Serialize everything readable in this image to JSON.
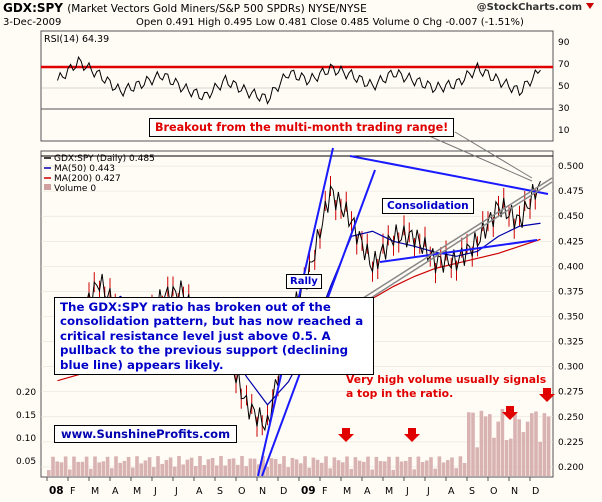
{
  "header": {
    "symbol": "GDX:SPY",
    "subtitle": "(Market Vectors Gold Miners/S&P 500 SPDRs) NYSE/NYSE",
    "brand": "@StockCharts.com",
    "date": "3-Dec-2009",
    "ohlc": "Open 0.491  High 0.495  Low 0.481  Close 0.485  Volume 0  Chg -0.007 (-1.51%)"
  },
  "colors": {
    "background": "#fffcf6",
    "price": "#000000",
    "down_bar": "#cc0000",
    "ma50": "#0000aa",
    "ma200": "#cc0000",
    "trendline": "#1a1aff",
    "volume": "#d0a0a0",
    "annotation_red": "#e00000",
    "annotation_blue": "#0000c8"
  },
  "annotations": {
    "breakout": "Breakout from the multi-month trading range!",
    "consolidation": "Consolidation",
    "rally": "Rally",
    "main_note": "The GDX:SPY ratio has broken out of the consolidation pattern, but has now reached a critical resistance level just above 0.5. A pullback to the previous support (declining blue line) appears likely.",
    "volume_note_1": "Very high volume usually signals",
    "volume_note_2": "a top in the ratio.",
    "website": "www.SunshineProfits.com"
  },
  "chart_data": [
    {
      "type": "line",
      "title": "RSI(14) 64.39",
      "ylim": [
        0,
        100
      ],
      "y_ticks": [
        "90",
        "70",
        "50",
        "30",
        "10"
      ],
      "reference_lines": [
        70,
        30
      ],
      "x": [
        "2008-01",
        "2008-02",
        "2008-03",
        "2008-04",
        "2008-05",
        "2008-06",
        "2008-07",
        "2008-08",
        "2008-09",
        "2008-10",
        "2008-11",
        "2008-12",
        "2009-01",
        "2009-02",
        "2009-03",
        "2009-04",
        "2009-05",
        "2009-06",
        "2009-07",
        "2009-08",
        "2009-09",
        "2009-10",
        "2009-11",
        "2009-12"
      ],
      "series": [
        {
          "name": "RSI(14)",
          "values": [
            55,
            72,
            60,
            45,
            52,
            60,
            48,
            40,
            55,
            45,
            38,
            62,
            55,
            66,
            60,
            50,
            62,
            55,
            48,
            52,
            66,
            55,
            45,
            64.39
          ]
        }
      ]
    },
    {
      "type": "line",
      "title": "GDX:SPY (Daily) 0.485",
      "legend": [
        "MA(50) 0.443",
        "MA(200) 0.427",
        "Volume 0"
      ],
      "ylim": [
        0.19,
        0.515
      ],
      "y_ticks": [
        "0.500",
        "0.475",
        "0.450",
        "0.425",
        "0.400",
        "0.375",
        "0.350",
        "0.325",
        "0.300",
        "0.275",
        "0.250",
        "0.225",
        "0.200"
      ],
      "x_ticks": [
        "08",
        "F",
        "M",
        "A",
        "M",
        "J",
        "J",
        "A",
        "S",
        "O",
        "N",
        "D",
        "09",
        "F",
        "M",
        "A",
        "M",
        "J",
        "J",
        "A",
        "S",
        "O",
        "N",
        "D"
      ],
      "x": [
        "2008-01",
        "2008-02",
        "2008-03",
        "2008-04",
        "2008-05",
        "2008-06",
        "2008-07",
        "2008-08",
        "2008-09",
        "2008-10",
        "2008-11",
        "2008-12",
        "2009-01",
        "2009-02",
        "2009-03",
        "2009-04",
        "2009-05",
        "2009-06",
        "2009-07",
        "2009-08",
        "2009-09",
        "2009-10",
        "2009-11",
        "2009-12"
      ],
      "series": [
        {
          "name": "GDX:SPY (Daily)",
          "values": [
            0.318,
            0.348,
            0.385,
            0.35,
            0.332,
            0.37,
            0.375,
            0.318,
            0.32,
            0.262,
            0.24,
            0.345,
            0.395,
            0.475,
            0.445,
            0.4,
            0.43,
            0.43,
            0.405,
            0.405,
            0.425,
            0.46,
            0.445,
            0.485
          ]
        },
        {
          "name": "MA(50)",
          "values": [
            0.31,
            0.33,
            0.355,
            0.37,
            0.352,
            0.347,
            0.353,
            0.34,
            0.325,
            0.29,
            0.262,
            0.285,
            0.325,
            0.38,
            0.43,
            0.435,
            0.425,
            0.42,
            0.414,
            0.41,
            0.415,
            0.43,
            0.44,
            0.443
          ]
        },
        {
          "name": "MA(200)",
          "values": [
            0.286,
            0.292,
            0.3,
            0.31,
            0.318,
            0.33,
            0.338,
            0.345,
            0.346,
            0.34,
            0.333,
            0.326,
            0.327,
            0.337,
            0.352,
            0.368,
            0.38,
            0.39,
            0.398,
            0.403,
            0.408,
            0.413,
            0.42,
            0.427
          ]
        }
      ],
      "volume_axis": {
        "y_ticks": [
          "0.20",
          "0.15",
          "0.10",
          "0.05"
        ]
      }
    }
  ]
}
